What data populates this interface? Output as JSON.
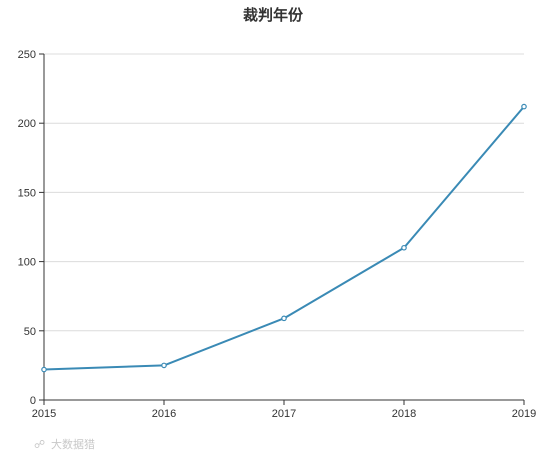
{
  "chart_data": {
    "type": "line",
    "title": "裁判年份",
    "x": [
      "2015",
      "2016",
      "2017",
      "2018",
      "2019"
    ],
    "series": [
      {
        "values": [
          22,
          25,
          59,
          110,
          212
        ],
        "color": "#3a8ab5"
      }
    ],
    "ylim": [
      0,
      250
    ],
    "yticks": [
      0,
      50,
      100,
      150,
      200,
      250
    ],
    "xlabel": "",
    "ylabel": "",
    "grid": true,
    "legend": "none"
  },
  "watermark": {
    "text": "大数据猎"
  }
}
